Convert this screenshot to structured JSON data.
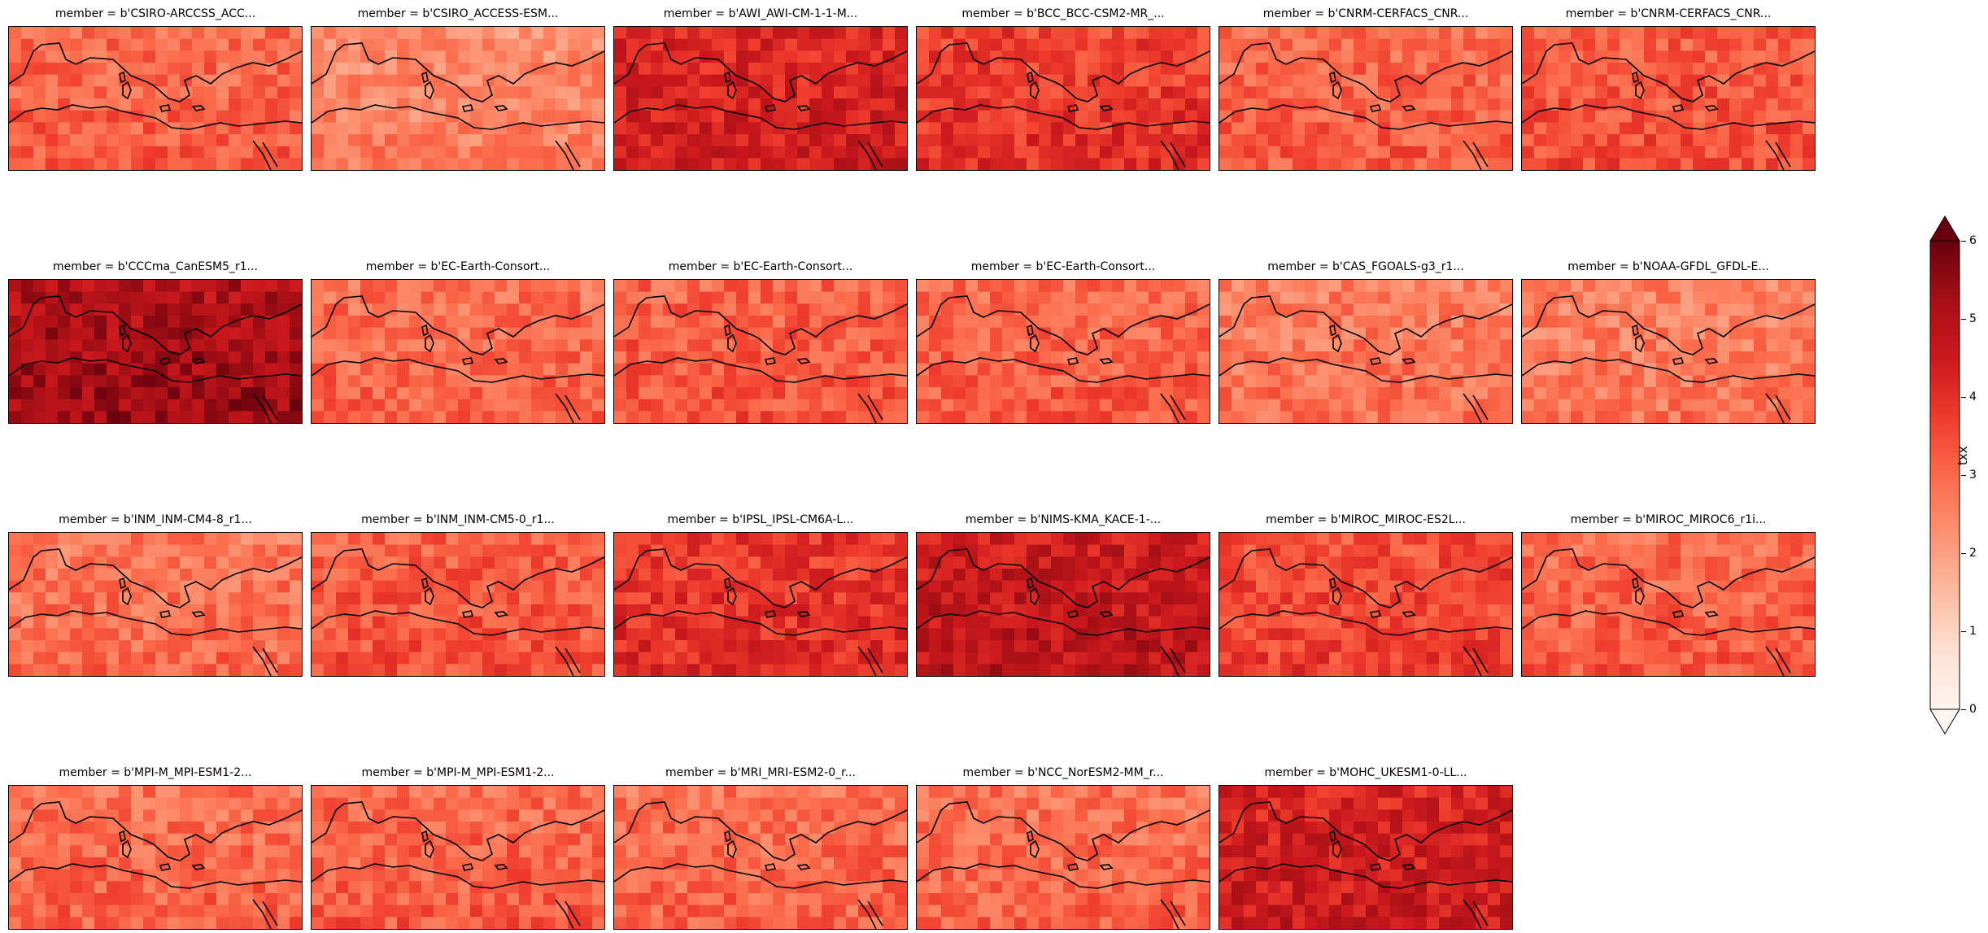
{
  "figure": {
    "panels": [
      {
        "title": "member = b'CSIRO-ARCCSS_ACC...",
        "level": 0.52
      },
      {
        "title": "member = b'CSIRO_ACCESS-ESM...",
        "level": 0.42
      },
      {
        "title": "member = b'AWI_AWI-CM-1-1-M...",
        "level": 0.72
      },
      {
        "title": "member = b'BCC_BCC-CSM2-MR_...",
        "level": 0.64
      },
      {
        "title": "member = b'CNRM-CERFACS_CNR...",
        "level": 0.52
      },
      {
        "title": "member = b'CNRM-CERFACS_CNR...",
        "level": 0.56
      },
      {
        "title": "member = b'CCCma_CanESM5_r1...",
        "level": 0.86
      },
      {
        "title": "member = b'EC-Earth-Consort...",
        "level": 0.5
      },
      {
        "title": "member = b'EC-Earth-Consort...",
        "level": 0.54
      },
      {
        "title": "member = b'EC-Earth-Consort...",
        "level": 0.52
      },
      {
        "title": "member = b'CAS_FGOALS-g3_r1...",
        "level": 0.46
      },
      {
        "title": "member = b'NOAA-GFDL_GFDL-E...",
        "level": 0.45
      },
      {
        "title": "member = b'INM_INM-CM4-8_r1...",
        "level": 0.48
      },
      {
        "title": "member = b'INM_INM-CM5-0_r1...",
        "level": 0.55
      },
      {
        "title": "member = b'IPSL_IPSL-CM6A-L...",
        "level": 0.66
      },
      {
        "title": "member = b'NIMS-KMA_KACE-1-...",
        "level": 0.78
      },
      {
        "title": "member = b'MIROC_MIROC-ES2L...",
        "level": 0.6
      },
      {
        "title": "member = b'MIROC_MIROC6_r1i...",
        "level": 0.52
      },
      {
        "title": "member = b'MPI-M_MPI-ESM1-2...",
        "level": 0.5
      },
      {
        "title": "member = b'MPI-M_MPI-ESM1-2...",
        "level": 0.52
      },
      {
        "title": "member = b'MRI_MRI-ESM2-0_r...",
        "level": 0.5
      },
      {
        "title": "member = b'NCC_NorESM2-MM_r...",
        "level": 0.5
      },
      {
        "title": "member = b'MOHC_UKESM1-0-LL...",
        "level": 0.74
      }
    ]
  },
  "chart_data": {
    "type": "heatmap",
    "colormap": "Reds",
    "colorbar": {
      "label": "txx",
      "range": [
        0,
        6
      ],
      "ticks": [
        "0",
        "1",
        "2",
        "3",
        "4",
        "5",
        "6"
      ],
      "extend": "both"
    },
    "colors": [
      "#fff5f0",
      "#fcbea5",
      "#fb7050",
      "#d32020",
      "#67000d"
    ]
  }
}
